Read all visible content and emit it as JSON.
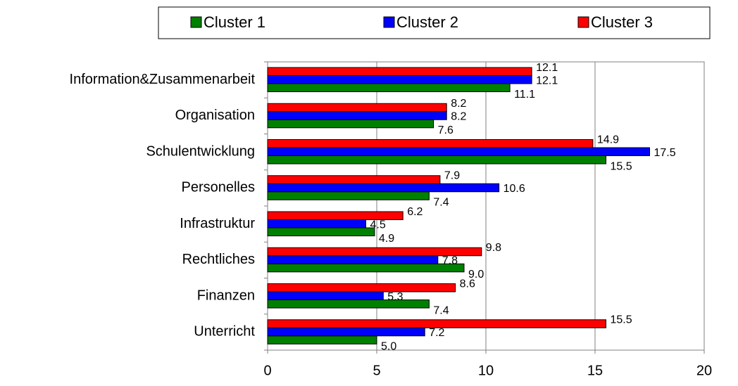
{
  "chart_data": {
    "type": "bar",
    "orientation": "horizontal",
    "categories": [
      "Information&Zusammenarbeit",
      "Organisation",
      "Schulentwicklung",
      "Personelles",
      "Infrastruktur",
      "Rechtliches",
      "Finanzen",
      "Unterricht"
    ],
    "series": [
      {
        "name": "Cluster 1",
        "color": "#008000",
        "values": [
          11.1,
          7.6,
          15.5,
          7.4,
          4.9,
          9.0,
          7.4,
          5.0
        ],
        "value_labels": [
          "11.1",
          "7.6",
          "15.5",
          "7.4",
          "4.9",
          "9.0",
          "7.4",
          "5.0"
        ]
      },
      {
        "name": "Cluster 2",
        "color": "#0000ff",
        "values": [
          12.1,
          8.2,
          17.5,
          10.6,
          4.5,
          7.8,
          5.3,
          7.2
        ],
        "value_labels": [
          "12.1",
          "8.2",
          "17.5",
          "10.6",
          "4.5",
          "7.8",
          "5.3",
          "7.2"
        ]
      },
      {
        "name": "Cluster 3",
        "color": "#ff0000",
        "values": [
          12.1,
          8.2,
          14.9,
          7.9,
          6.2,
          9.8,
          8.6,
          15.5
        ],
        "value_labels": [
          "12.1",
          "8.2",
          "14.9",
          "7.9",
          "6.2",
          "9.8",
          "8.6",
          "15.5"
        ]
      }
    ],
    "xlim": [
      0,
      20
    ],
    "xticks": [
      0,
      5,
      10,
      15,
      20
    ],
    "grid": true,
    "legend": "top"
  }
}
